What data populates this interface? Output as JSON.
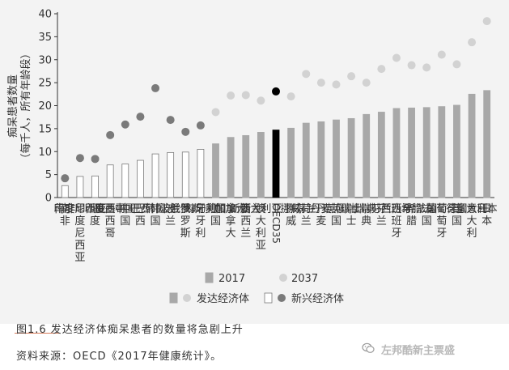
{
  "chart_data": {
    "type": "bar",
    "ylabel_line1": "痴呆患者数量",
    "ylabel_line2": "（每千人，所有年龄段）",
    "ylim": [
      0,
      40
    ],
    "yticks": [
      0,
      5,
      10,
      15,
      20,
      25,
      30,
      35,
      40
    ],
    "categories": [
      "南非",
      "印度尼西亚",
      "印度",
      "墨西哥",
      "中国",
      "巴西",
      "韩国",
      "波兰",
      "俄罗斯",
      "匈牙利",
      "美国",
      "加拿大",
      "新西兰",
      "澳大利亚",
      "OECD35",
      "挪威",
      "荷兰",
      "丹麦",
      "英国",
      "瑞士",
      "瑞典",
      "芬兰",
      "西班牙",
      "希腊",
      "法国",
      "葡萄牙",
      "德国",
      "意大利",
      "日本"
    ],
    "group": [
      "emerging",
      "emerging",
      "emerging",
      "emerging",
      "emerging",
      "emerging",
      "emerging",
      "emerging",
      "emerging",
      "emerging",
      "developed",
      "developed",
      "developed",
      "developed",
      "oecd",
      "developed",
      "developed",
      "developed",
      "developed",
      "developed",
      "developed",
      "developed",
      "developed",
      "developed",
      "developed",
      "developed",
      "developed",
      "developed",
      "developed"
    ],
    "series": [
      {
        "name": "2017",
        "kind": "bar",
        "values": [
          2.6,
          4.6,
          4.7,
          7.1,
          7.3,
          8.1,
          9.5,
          9.8,
          9.9,
          10.5,
          11.7,
          13.1,
          13.5,
          14.2,
          14.7,
          15.1,
          16.2,
          16.5,
          16.9,
          17.2,
          18.1,
          18.6,
          19.4,
          19.5,
          19.6,
          19.8,
          20.1,
          22.5,
          23.3
        ]
      },
      {
        "name": "2037",
        "kind": "dot",
        "values": [
          4.2,
          8.6,
          8.4,
          13.6,
          15.9,
          17.6,
          23.8,
          16.9,
          14.3,
          15.7,
          18.6,
          22.2,
          22.3,
          21.1,
          23.1,
          22.0,
          26.9,
          25.0,
          24.6,
          26.4,
          25.0,
          28.0,
          30.4,
          28.8,
          28.3,
          31.1,
          29.0,
          33.8,
          38.4
        ]
      }
    ],
    "legend_row1": [
      "2017",
      "2037"
    ],
    "legend_row2": [
      "发达经济体",
      "新兴经济体"
    ],
    "colors": {
      "developed_bar": "#a8a8a8",
      "emerging_bar": "#ffffff",
      "emerging_bar_stroke": "#7a7a7a",
      "oecd_bar": "#000000",
      "developed_dot": "#d2d2d2",
      "emerging_dot": "#7a7a7a",
      "oecd_dot": "#000000",
      "axis": "#333333",
      "text": "#333333",
      "background": "#f3f3f3"
    }
  },
  "caption": {
    "title": "图1.6 发达经济体痴呆患者的数量将急剧上升",
    "source": "资料来源：OECD《2017年健康统计》。"
  },
  "watermark": {
    "text": "左邦酷新主票盛",
    "icon": "wechat-icon"
  }
}
